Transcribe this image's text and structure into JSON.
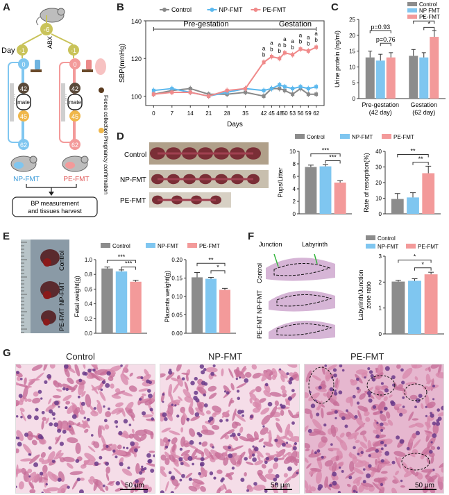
{
  "panels": {
    "A": "A",
    "B": "B",
    "C": "C",
    "D": "D",
    "E": "E",
    "F": "F",
    "G": "G"
  },
  "panelA": {
    "abx": "ABX",
    "day": "Day",
    "d_minus6": "-6",
    "d_minus1a": "-1",
    "d_minus1b": "-1",
    "d0a": "0",
    "d0b": "0",
    "d42a": "42",
    "d42b": "42",
    "mate_a": "mate",
    "mate_b": "mate",
    "d45a": "45",
    "d45b": "45",
    "d62a": "62",
    "d62b": "62",
    "fmt_a": "FMT",
    "fmt_b": "FMT",
    "np_label": "NP-FMT",
    "pe_label": "PE-FMT",
    "harvest_line1": "BP measurement",
    "harvest_line2": "and tissues harvest",
    "legend_feces": "Feces collection",
    "legend_preg": "Pregnancy confirmation"
  },
  "panelB": {
    "chart_data": {
      "type": "line",
      "title": "",
      "xlabel": "Days",
      "ylabel": "SBP(mmHg)",
      "x": [
        0,
        7,
        14,
        21,
        28,
        35,
        42,
        45,
        48,
        50,
        53,
        56,
        59,
        62
      ],
      "ylim": [
        95,
        140
      ],
      "yticks": [
        100,
        120,
        140
      ],
      "series": [
        {
          "name": "Control",
          "color": "#888888",
          "values": [
            101,
            103,
            104,
            101,
            101,
            102,
            100,
            104,
            104,
            103,
            101,
            104,
            101,
            101
          ]
        },
        {
          "name": "NP-FMT",
          "color": "#5bb8ee",
          "values": [
            103,
            104,
            102,
            100,
            102,
            104,
            103,
            104,
            106,
            105,
            104,
            105,
            104,
            105
          ]
        },
        {
          "name": "PE-FMT",
          "color": "#f08a8a",
          "values": [
            101,
            102,
            102,
            100,
            103,
            104,
            118,
            121,
            120,
            123,
            122,
            125,
            124,
            126
          ]
        }
      ],
      "pregestation_label": "Pre-gestation",
      "gestation_label": "Gestation",
      "annotations": [
        "a",
        "b",
        "a",
        "b",
        "a",
        "b",
        "a",
        "b",
        "a",
        "b",
        "a",
        "b",
        "a",
        "b",
        "a",
        "b"
      ]
    }
  },
  "panelC": {
    "chart_data": {
      "type": "bar",
      "ylabel": "Urine protein (ng/ml)",
      "categories": [
        "Pre-gestation\n(42 day)",
        "Gestation\n(62 day)"
      ],
      "cat_line1": [
        "Pre-gestation",
        "Gestation"
      ],
      "cat_line2": [
        "(42 day)",
        "(62 day)"
      ],
      "ylim": [
        0,
        25
      ],
      "yticks": [
        0,
        5,
        10,
        15,
        20,
        25
      ],
      "series": [
        {
          "name": "Control",
          "color": "#8c8c8c",
          "values": [
            13,
            13.5
          ]
        },
        {
          "name": "NP FMT",
          "color": "#7fc6f0",
          "values": [
            12,
            13
          ]
        },
        {
          "name": "PE-FMT",
          "color": "#f39a9a",
          "values": [
            13,
            19.5
          ]
        }
      ],
      "errors": [
        [
          2,
          2
        ],
        [
          2,
          1.5
        ],
        [
          1.5,
          2
        ]
      ],
      "annot": [
        "p=0.93",
        "p=0.76",
        "*",
        "*"
      ]
    }
  },
  "panelD": {
    "photo_labels": [
      "Control",
      "NP-FMT",
      "PE-FMT"
    ],
    "legend": [
      "Control",
      "NP-FMT",
      "PE-FMT"
    ],
    "chart1": {
      "type": "bar",
      "ylabel": "Pups/Litter",
      "ylim": [
        0,
        10
      ],
      "yticks": [
        0,
        2,
        4,
        6,
        8,
        10
      ],
      "values": [
        7.5,
        7.6,
        5
      ],
      "errors": [
        0.3,
        0.3,
        0.3
      ],
      "annot": [
        "***",
        "***"
      ],
      "colors": [
        "#8c8c8c",
        "#7fc6f0",
        "#f39a9a"
      ]
    },
    "chart2": {
      "type": "bar",
      "ylabel": "Rate of resorption(%)",
      "ylim": [
        0,
        40
      ],
      "yticks": [
        0,
        10,
        20,
        30,
        40
      ],
      "values": [
        9.5,
        10.5,
        26
      ],
      "errors": [
        3.5,
        3,
        4.5
      ],
      "annot": [
        "**",
        "**"
      ],
      "colors": [
        "#8c8c8c",
        "#7fc6f0",
        "#f39a9a"
      ]
    }
  },
  "panelE": {
    "photo_labels": [
      "Control",
      "NP-FMT",
      "PE-FMT"
    ],
    "legend": [
      "Control",
      "NP-FMT",
      "PE-FMT"
    ],
    "chart1": {
      "type": "bar",
      "ylabel": "Fetal weight(g)",
      "ylim": [
        0,
        1.0
      ],
      "yticks": [
        "0.0",
        "0.2",
        "0.4",
        "0.6",
        "0.8",
        "1.0"
      ],
      "values": [
        0.88,
        0.84,
        0.7
      ],
      "errors": [
        0.02,
        0.02,
        0.02
      ],
      "annot": [
        "***",
        "***"
      ],
      "colors": [
        "#8c8c8c",
        "#7fc6f0",
        "#f39a9a"
      ]
    },
    "chart2": {
      "type": "bar",
      "ylabel": "Placenta weight(g)",
      "ylim": [
        0,
        0.2
      ],
      "yticks": [
        "0.00",
        "0.05",
        "0.10",
        "0.15",
        "0.20"
      ],
      "values": [
        0.152,
        0.148,
        0.118
      ],
      "errors": [
        0.013,
        0.004,
        0.004
      ],
      "annot": [
        "**",
        "*"
      ],
      "colors": [
        "#8c8c8c",
        "#7fc6f0",
        "#f39a9a"
      ]
    }
  },
  "panelF": {
    "junction": "Junction",
    "labyrinth": "Labyrinth",
    "row_labels": [
      "Control",
      "NP-FMT",
      "PE-FMT"
    ],
    "legend": [
      "Control",
      "NP-FMT",
      "PE-FMT"
    ],
    "chart": {
      "type": "bar",
      "ylabel": "Labyrinth/Junction zone ratio",
      "ylabel1": "Labyrinth/Junction",
      "ylabel2": "zone ratio",
      "ylim": [
        0,
        3
      ],
      "yticks": [
        0,
        1,
        2,
        3
      ],
      "values": [
        2.02,
        2.05,
        2.3
      ],
      "errors": [
        0.05,
        0.08,
        0.08
      ],
      "annot": [
        "*",
        "*"
      ],
      "colors": [
        "#8c8c8c",
        "#7fc6f0",
        "#f39a9a"
      ]
    }
  },
  "panelG": {
    "titles": [
      "Control",
      "NP-FMT",
      "PE-FMT"
    ],
    "scale": "50 μm"
  }
}
